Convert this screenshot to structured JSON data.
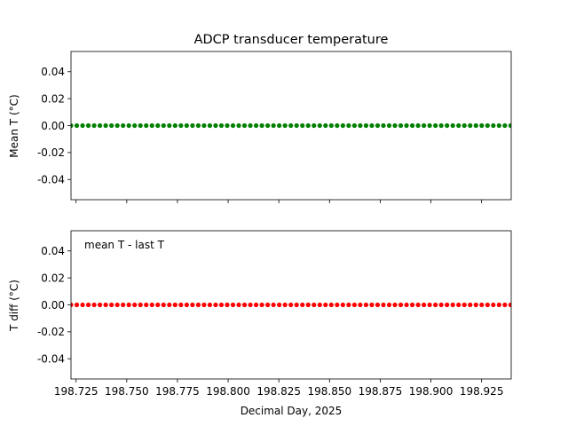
{
  "chart_data": [
    {
      "type": "scatter",
      "title": "ADCP transducer temperature",
      "ylabel": "Mean T (°C)",
      "xlabel": "",
      "annotation": "",
      "xlim": [
        198.7225,
        198.9396
      ],
      "ylim": [
        -0.055,
        0.055
      ],
      "x_tick_values": [
        198.725,
        198.75,
        198.775,
        198.8,
        198.825,
        198.85,
        198.875,
        198.9,
        198.925
      ],
      "x_tick_labels_shown": false,
      "y_ticks": [
        "0.04",
        "0.02",
        "0.00",
        "-0.02",
        "-0.04"
      ],
      "y_tick_values": [
        0.04,
        0.02,
        0.0,
        -0.02,
        -0.04
      ],
      "marker_color": "#008000",
      "series": [
        {
          "x_start": 198.7225,
          "x_step": 0.002853,
          "count": 77,
          "y": 0.0
        }
      ]
    },
    {
      "type": "scatter",
      "title": "",
      "ylabel": "T diff (°C)",
      "xlabel": "Decimal Day, 2025",
      "annotation": "mean T - last T",
      "xlim": [
        198.7225,
        198.9396
      ],
      "ylim": [
        -0.055,
        0.055
      ],
      "x_tick_values": [
        198.725,
        198.75,
        198.775,
        198.8,
        198.825,
        198.85,
        198.875,
        198.9,
        198.925
      ],
      "x_ticks": [
        "198.725",
        "198.750",
        "198.775",
        "198.800",
        "198.825",
        "198.850",
        "198.875",
        "198.900",
        "198.925"
      ],
      "x_tick_labels_shown": true,
      "y_ticks": [
        "0.04",
        "0.02",
        "0.00",
        "-0.02",
        "-0.04"
      ],
      "y_tick_values": [
        0.04,
        0.02,
        0.0,
        -0.02,
        -0.04
      ],
      "marker_color": "#ff0000",
      "series": [
        {
          "x_start": 198.7225,
          "x_step": 0.002853,
          "count": 77,
          "y": 0.0
        }
      ]
    }
  ]
}
